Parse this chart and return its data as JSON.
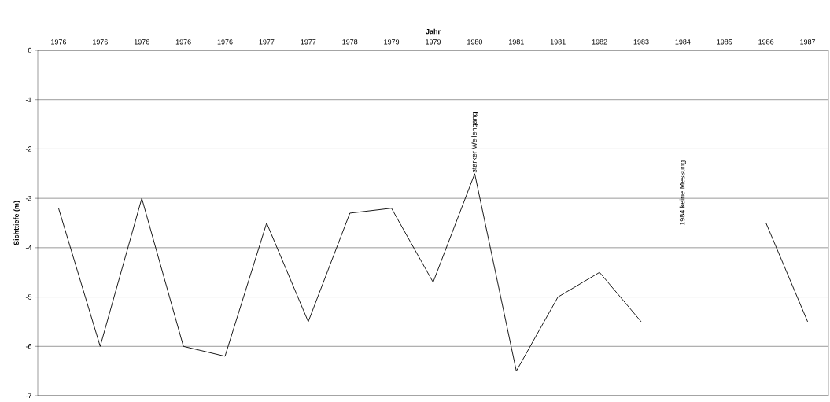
{
  "chart_data": {
    "type": "line",
    "xlabel": "Jahr",
    "ylabel": "Sichttiefe (m)",
    "categories": [
      "1976",
      "1976",
      "1976",
      "1976",
      "1976",
      "1977",
      "1977",
      "1978",
      "1979",
      "1979",
      "1980",
      "1981",
      "1981",
      "1982",
      "1983",
      "1984",
      "1985",
      "1986",
      "1987"
    ],
    "series": [
      {
        "color": "#000000",
        "values": [
          -3.2,
          -6.0,
          -3.0,
          -6.0,
          -6.2,
          -3.5,
          -5.5,
          -3.3,
          -3.2,
          -4.7,
          -2.5,
          -6.5,
          -5.0,
          -4.5,
          -5.5,
          null,
          -3.5,
          -3.5,
          -5.5
        ]
      }
    ],
    "ylim": [
      -7,
      0
    ],
    "yticks": [
      -7,
      -6,
      -5,
      -4,
      -3,
      -2,
      -1,
      0
    ],
    "grid": "y",
    "marker": "none",
    "line_style": "solid",
    "annotations": [
      {
        "text": "starker Wellengang",
        "x": "1980",
        "y": -2.5
      },
      "1984 keine Messung"
    ]
  }
}
